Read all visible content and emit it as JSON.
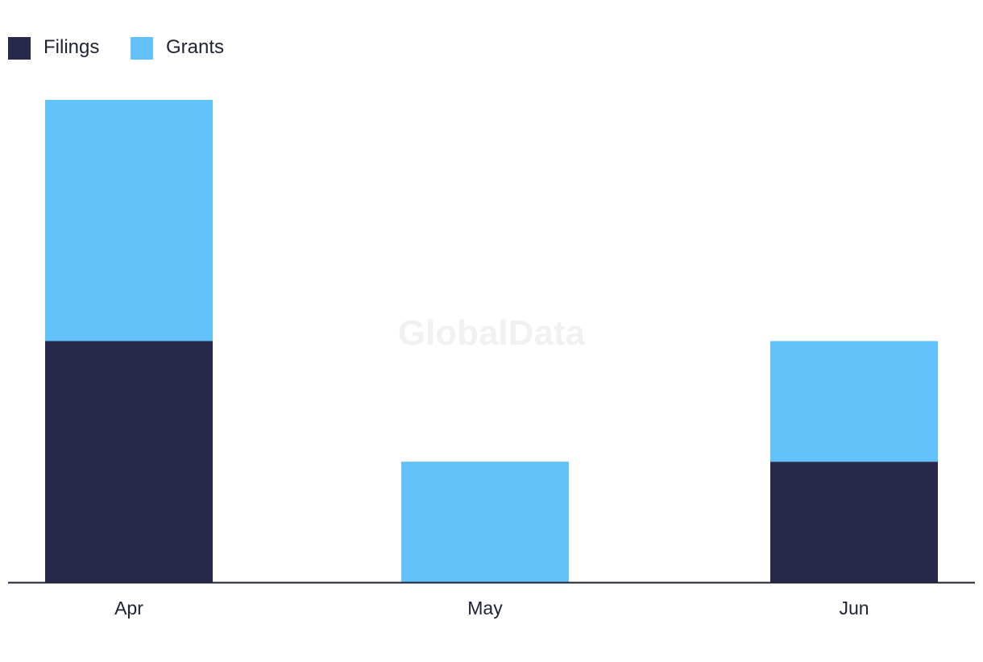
{
  "chart_data": {
    "type": "bar",
    "stacked": true,
    "categories": [
      "Apr",
      "May",
      "Jun"
    ],
    "series": [
      {
        "name": "Filings",
        "color": "#27284a",
        "values": [
          2,
          0,
          1
        ]
      },
      {
        "name": "Grants",
        "color": "#62c1f8",
        "values": [
          2,
          1,
          1
        ]
      }
    ],
    "ylim": [
      0,
      4
    ],
    "grid": false,
    "legend_position": "top-left",
    "watermark": "GlobalData"
  }
}
